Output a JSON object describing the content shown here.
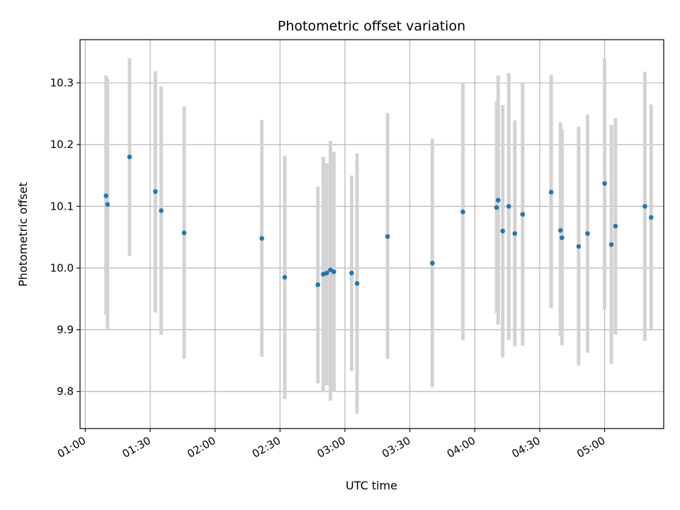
{
  "chart_data": {
    "type": "scatter",
    "title": "Photometric offset variation",
    "xlabel": "UTC time",
    "ylabel": "Photometric offset",
    "grid": true,
    "x_tick_labels": [
      "01:00",
      "01:30",
      "02:00",
      "02:30",
      "03:00",
      "03:30",
      "04:00",
      "04:30",
      "05:00"
    ],
    "x_tick_minutes": [
      60,
      90,
      120,
      150,
      180,
      210,
      240,
      270,
      300
    ],
    "xlim_minutes": [
      57.6,
      327.3
    ],
    "y_ticks": [
      9.8,
      9.9,
      10.0,
      10.1,
      10.2,
      10.3
    ],
    "y_tick_labels": [
      "9.8",
      "9.9",
      "10.0",
      "10.1",
      "10.2",
      "10.3"
    ],
    "ylim": [
      9.74,
      10.37
    ],
    "colors": {
      "points": "#1f77b4",
      "errorbars": "#d3d3d3",
      "grid": "#b0b0b0"
    },
    "series": [
      {
        "x_minutes": [
          69.6,
          70.3,
          80.5,
          92.4,
          95.1,
          105.7,
          141.6,
          152.2,
          167.5,
          170.0,
          171.6,
          173.3,
          174.9,
          183.1,
          185.6,
          199.7,
          220.4,
          234.5,
          250.1,
          250.8,
          252.9,
          255.7,
          258.5,
          262.1,
          275.3,
          279.6,
          280.3,
          288.0,
          292.1,
          300.0,
          303.1,
          305.0,
          318.6,
          321.5
        ],
        "y": [
          10.117,
          10.103,
          10.18,
          10.124,
          10.093,
          10.057,
          10.048,
          9.985,
          9.973,
          9.99,
          9.992,
          9.997,
          9.994,
          9.992,
          9.975,
          10.051,
          10.008,
          10.091,
          10.098,
          10.11,
          10.06,
          10.1,
          10.056,
          10.087,
          10.123,
          10.061,
          10.049,
          10.035,
          10.056,
          10.137,
          10.038,
          10.068,
          10.1,
          10.082
        ],
        "yerr_low": [
          9.924,
          9.9,
          10.02,
          9.928,
          9.892,
          9.853,
          9.856,
          9.788,
          9.813,
          9.8,
          9.81,
          9.785,
          9.8,
          9.833,
          9.764,
          9.853,
          9.807,
          9.883,
          9.927,
          9.908,
          9.855,
          9.883,
          9.873,
          9.874,
          9.935,
          9.89,
          9.875,
          9.842,
          9.863,
          9.933,
          9.845,
          9.892,
          9.882,
          9.901
        ],
        "yerr_high": [
          10.312,
          10.306,
          10.34,
          10.319,
          10.294,
          10.262,
          10.24,
          10.182,
          10.132,
          10.18,
          10.17,
          10.206,
          10.188,
          10.15,
          10.186,
          10.251,
          10.209,
          10.299,
          10.27,
          10.312,
          10.264,
          10.316,
          10.239,
          10.3,
          10.313,
          10.236,
          10.225,
          10.229,
          10.249,
          10.34,
          10.232,
          10.243,
          10.318,
          10.265
        ]
      }
    ]
  }
}
